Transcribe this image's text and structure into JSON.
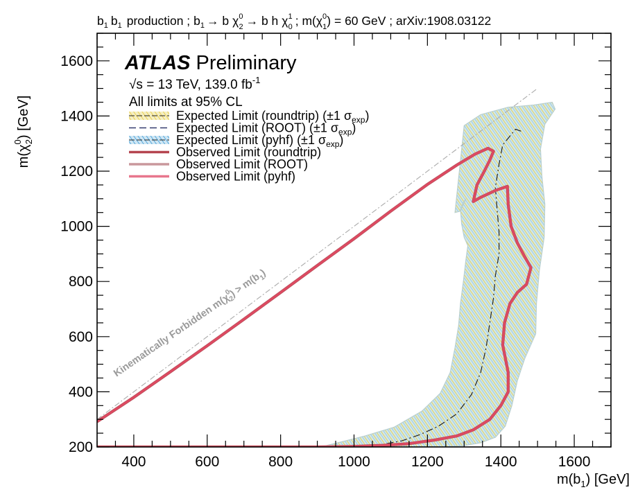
{
  "chart_data": {
    "type": "line",
    "title": {
      "prod_a": "b",
      "prod_a_sub": "1",
      "prod_b": "b",
      "prod_b_sub": "1",
      "prod_word": "production ;",
      "dec_a": "b",
      "dec_a_sub": "1",
      "dec_arrow1": "→ b",
      "dec_chi": "χ",
      "dec_chi_sup": "0",
      "dec_chi_sub": "2",
      "dec_arrow2": "→ b h",
      "dec_chi2": "χ",
      "dec_chi2_sup": "1",
      "dec_chi2_sub": "0",
      "mass_pre": "; m(",
      "mass_chi": "χ",
      "mass_chi_sup": "0",
      "mass_chi_sub": "1",
      "mass_post": ") = 60 GeV ; arXiv:1908.03122"
    },
    "xlabel": {
      "pre": "m(",
      "sym": "b",
      "sub": "1",
      "post": ") [GeV]"
    },
    "ylabel": {
      "pre": "m(",
      "sym": "χ",
      "sup": "0",
      "sub": "2",
      "post": ") [GeV]"
    },
    "xlim": [
      300,
      1700
    ],
    "ylim": [
      200,
      1700
    ],
    "xticks": [
      400,
      600,
      800,
      1000,
      1200,
      1400,
      1600
    ],
    "yticks": [
      200,
      400,
      600,
      800,
      1000,
      1200,
      1400,
      1600
    ],
    "grid": false,
    "experiment": {
      "bold": "ATLAS",
      "rest": "Preliminary"
    },
    "energy": {
      "sqrt": "√s = 13 TeV, 139.0 fb",
      "sup": "-1"
    },
    "cl_text": "All limits at 95% CL",
    "legend": [
      {
        "text": "Expected Limit (roundtrip) (±1 σ",
        "sub": "exp",
        "close": ")",
        "style": "band",
        "color": "#e8d24a"
      },
      {
        "text": "Expected Limit (ROOT) (±1 σ",
        "sub": "exp",
        "close": ")",
        "style": "dash",
        "color": "#333a6e"
      },
      {
        "text": "Expected Limit (pyhf) (±1 σ",
        "sub": "exp",
        "close": ")",
        "style": "band",
        "color": "#4aa3d6"
      },
      {
        "text": "Observed Limit (roundtrip)",
        "style": "line",
        "color": "#b5454f"
      },
      {
        "text": "Observed Limit (ROOT)",
        "style": "line",
        "color": "#c9979c"
      },
      {
        "text": "Observed Limit (pyhf)",
        "style": "line",
        "color": "#e8768d"
      }
    ],
    "forbidden_label": {
      "text": "Kinematically Forbidden m(",
      "sym": "χ",
      "sup": "0",
      "sub": "2",
      "mid": ") > m(",
      "sym2": "b",
      "sub2": "1",
      "close": ")"
    },
    "kinematic_line": {
      "x": [
        300,
        1500
      ],
      "y": [
        300,
        1500
      ]
    },
    "series": [
      {
        "name": "Observed Limit (pyhf)",
        "x": [
          300,
          400,
          500,
          600,
          700,
          800,
          900,
          1000,
          1100,
          1200,
          1280,
          1330,
          1365,
          1380,
          1370,
          1355,
          1335,
          1325,
          1345,
          1385,
          1418,
          1420,
          1428,
          1445,
          1465,
          1482,
          1470,
          1445,
          1425,
          1410,
          1405,
          1420,
          1420,
          1400,
          1370,
          1325,
          1280,
          1220,
          1150,
          1080,
          1000,
          900,
          700,
          500,
          300
        ],
        "y": [
          292,
          380,
          473,
          567,
          663,
          760,
          858,
          955,
          1055,
          1152,
          1222,
          1262,
          1283,
          1272,
          1240,
          1200,
          1150,
          1090,
          1105,
          1130,
          1145,
          1080,
          1000,
          940,
          890,
          850,
          790,
          760,
          720,
          650,
          570,
          470,
          400,
          350,
          300,
          262,
          240,
          225,
          212,
          206,
          202,
          200,
          200,
          200,
          200
        ]
      },
      {
        "name": "Expected Limit (ROOT)",
        "x": [
          1455,
          1440,
          1405,
          1395,
          1385,
          1390,
          1395,
          1395,
          1385,
          1380,
          1370,
          1360,
          1345,
          1320,
          1280,
          1230,
          1180,
          1130,
          1080
        ],
        "y": [
          1345,
          1352,
          1295,
          1225,
          1140,
          1060,
          980,
          900,
          820,
          740,
          650,
          560,
          470,
          390,
          320,
          275,
          245,
          222,
          210
        ]
      }
    ],
    "band": {
      "name": "Expected Limit (pyhf)",
      "x": [
        1300,
        1345,
        1420,
        1490,
        1540,
        1548,
        1520,
        1508,
        1512,
        1520,
        1518,
        1505,
        1497,
        1495,
        1465,
        1445,
        1430,
        1412,
        1385,
        1345,
        1295,
        1245,
        1180,
        1110,
        1040,
        980,
        910,
        940,
        1030,
        1110,
        1185,
        1235,
        1262,
        1275,
        1285,
        1290,
        1298,
        1305,
        1310,
        1300,
        1293,
        1290,
        1297,
        1305,
        1290,
        1275
      ],
      "y": [
        1365,
        1405,
        1432,
        1440,
        1450,
        1425,
        1370,
        1280,
        1180,
        1080,
        960,
        840,
        720,
        610,
        520,
        440,
        350,
        275,
        235,
        215,
        204,
        200,
        200,
        200,
        200,
        200,
        200,
        210,
        240,
        272,
        330,
        395,
        470,
        560,
        640,
        720,
        800,
        880,
        930,
        960,
        1010,
        1060,
        1085,
        1100,
        1055,
        1050
      ]
    }
  }
}
